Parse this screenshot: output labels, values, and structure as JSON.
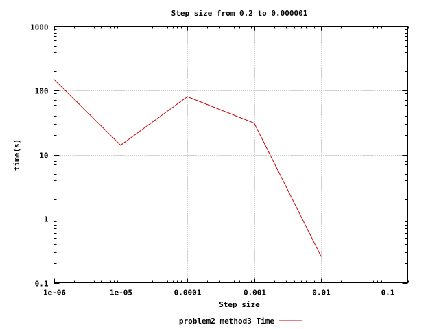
{
  "chart_data": {
    "type": "line",
    "title": "Step size from 0.2 to 0.000001",
    "xlabel": "Step size",
    "ylabel": "time(s)",
    "x_scale": "log",
    "y_scale": "log",
    "xlim": [
      1e-06,
      0.2
    ],
    "ylim": [
      0.1,
      1000
    ],
    "grid": true,
    "legend_position": "bottom-center",
    "x_ticks": [
      {
        "value": 1e-06,
        "label": "1e-06"
      },
      {
        "value": 1e-05,
        "label": "1e-05"
      },
      {
        "value": 0.0001,
        "label": "0.0001"
      },
      {
        "value": 0.001,
        "label": "0.001"
      },
      {
        "value": 0.01,
        "label": "0.01"
      },
      {
        "value": 0.1,
        "label": "0.1"
      }
    ],
    "y_ticks": [
      {
        "value": 0.1,
        "label": "0.1"
      },
      {
        "value": 1,
        "label": "1"
      },
      {
        "value": 10,
        "label": "10"
      },
      {
        "value": 100,
        "label": "100"
      },
      {
        "value": 1000,
        "label": "1000"
      }
    ],
    "series": [
      {
        "name": "problem2 method3 Time",
        "color": "#cc0000",
        "x": [
          1e-06,
          1e-05,
          0.0001,
          0.001,
          0.01
        ],
        "y": [
          150,
          14,
          80,
          31,
          0.26
        ]
      }
    ]
  }
}
